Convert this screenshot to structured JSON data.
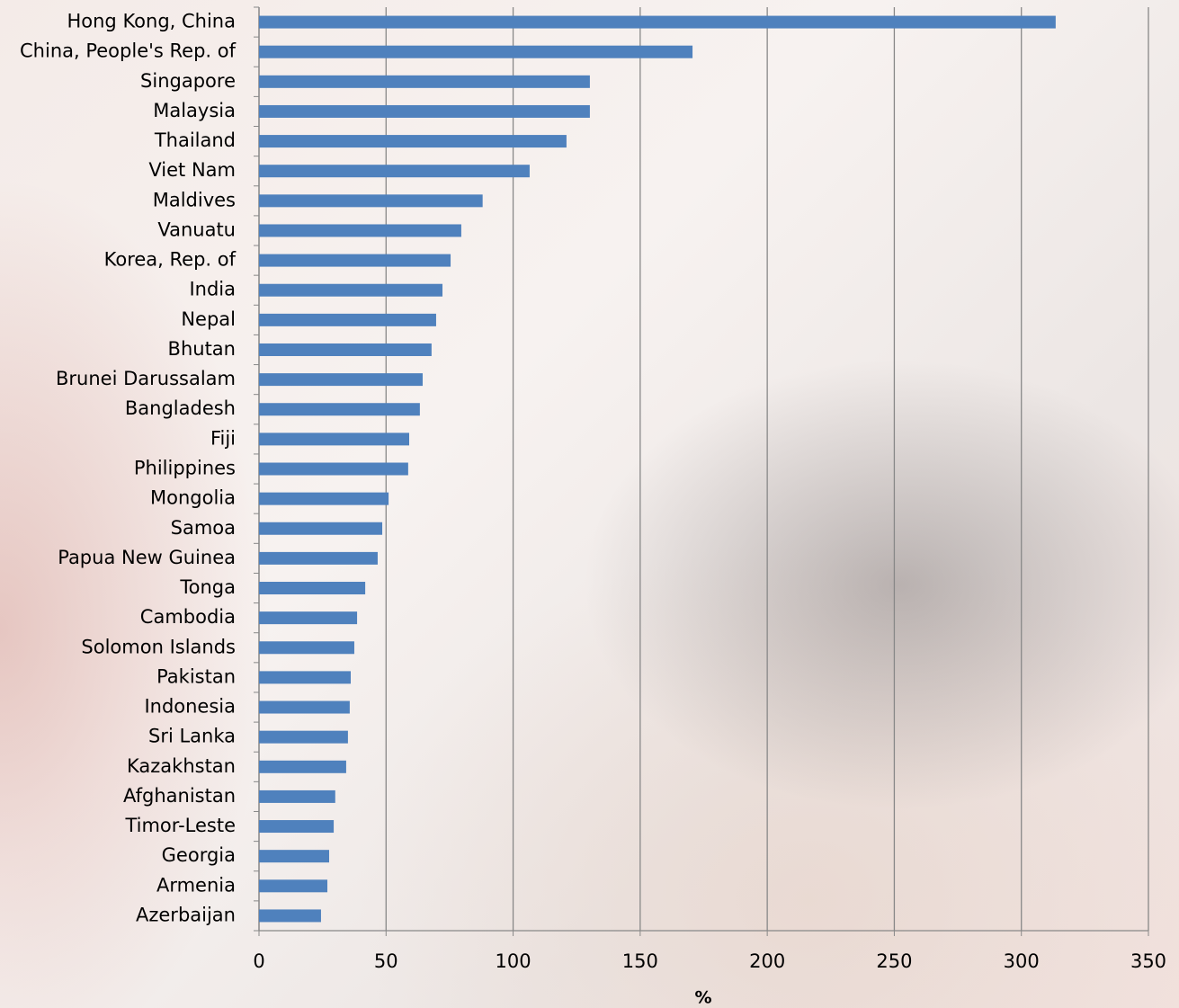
{
  "chart_data": {
    "type": "barh",
    "categories": [
      "Hong Kong, China",
      "China, People's Rep. of",
      "Singapore",
      "Malaysia",
      "Thailand",
      "Viet Nam",
      "Maldives",
      "Vanuatu",
      "Korea, Rep. of",
      "India",
      "Nepal",
      "Bhutan",
      "Brunei Darussalam",
      "Bangladesh",
      "Fiji",
      "Philippines",
      "Mongolia",
      "Samoa",
      "Papua New Guinea",
      "Tonga",
      "Cambodia",
      "Solomon Islands",
      "Pakistan",
      "Indonesia",
      "Sri Lanka",
      "Kazakhstan",
      "Afghanistan",
      "Timor-Leste",
      "Georgia",
      "Armenia",
      "Azerbaijan"
    ],
    "values": [
      313.5,
      170.6,
      130.2,
      130.2,
      121,
      106.5,
      88,
      79.6,
      75.4,
      72.2,
      69.7,
      67.9,
      64.4,
      63.3,
      59.1,
      58.7,
      51,
      48.5,
      46.7,
      41.8,
      38.6,
      37.5,
      36.1,
      35.7,
      35,
      34.3,
      30,
      29.4,
      27.6,
      26.9,
      24.4
    ],
    "color": "#4f81bd",
    "xlabel": "%",
    "xlim": [
      0,
      350
    ],
    "xticks": [
      0,
      50,
      100,
      150,
      200,
      250,
      300,
      350
    ],
    "grid": true
  }
}
